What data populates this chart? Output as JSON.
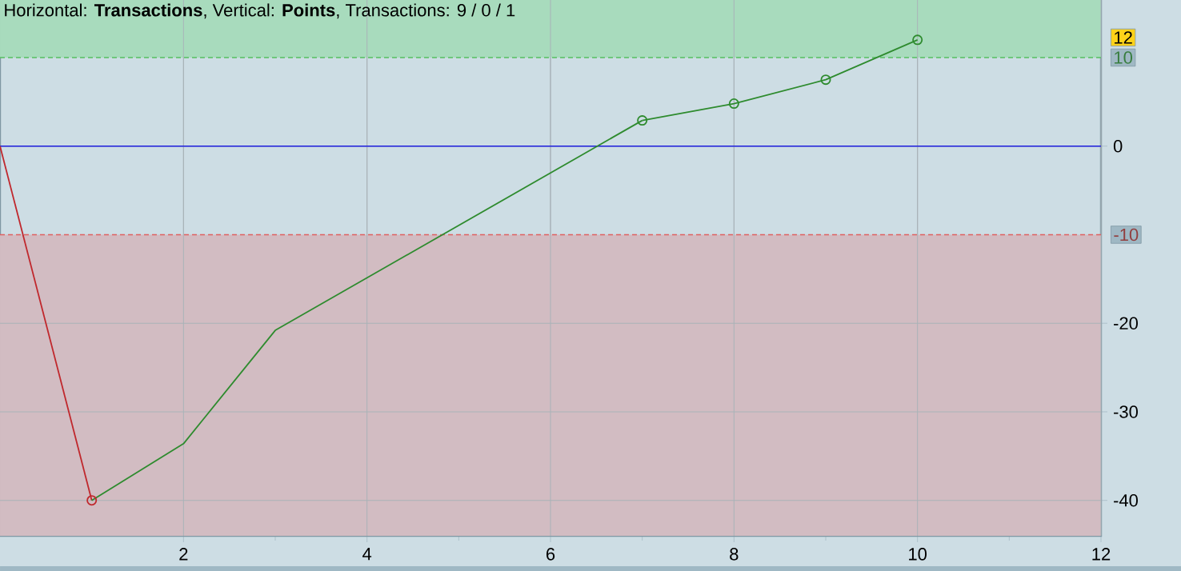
{
  "chart_data": {
    "type": "line",
    "title": "Horizontal: **Transactions**, Vertical: **Points**, Transactions: 9 / 0 / 1",
    "xlim": [
      0,
      12
    ],
    "xticks": [
      2,
      4,
      6,
      8,
      10,
      12
    ],
    "ylim": [
      -44,
      16.5
    ],
    "yticks": [
      -40,
      -30,
      -20,
      0
    ],
    "grid": true,
    "series": [
      {
        "color": "#c0282d",
        "x": [
          0,
          1
        ],
        "values": [
          0,
          -40
        ]
      },
      {
        "color": "#2e8b2e",
        "x": [
          1,
          2,
          3,
          7
        ],
        "values": [
          -40,
          -33.6,
          -20.8,
          2.9
        ]
      },
      {
        "color": "#2e8b2e",
        "x": [
          7,
          8,
          9,
          10
        ],
        "values": [
          2.9,
          4.8,
          7.5,
          12
        ],
        "marker": "circle"
      },
      {
        "type": "scatter",
        "color": "#c0282d",
        "x": [
          1
        ],
        "values": [
          -40
        ],
        "marker": "circle"
      }
    ],
    "bands": [
      {
        "axis": "y",
        "from": 10,
        "to": 16.5,
        "color": "#a8dbbd"
      },
      {
        "axis": "y",
        "from": -44,
        "to": -10,
        "color": "#d2bcc2"
      }
    ],
    "ref_lines": [
      {
        "axis": "y",
        "value": 0,
        "color": "#2020e0",
        "line_style": "solid"
      },
      {
        "axis": "y",
        "value": 10,
        "label": "10",
        "color": "#55c060",
        "line_style": "dashed"
      },
      {
        "axis": "y",
        "value": -10,
        "label": "-10",
        "color": "#e06060",
        "line_style": "dashed"
      }
    ],
    "annotations": [
      "12"
    ]
  }
}
